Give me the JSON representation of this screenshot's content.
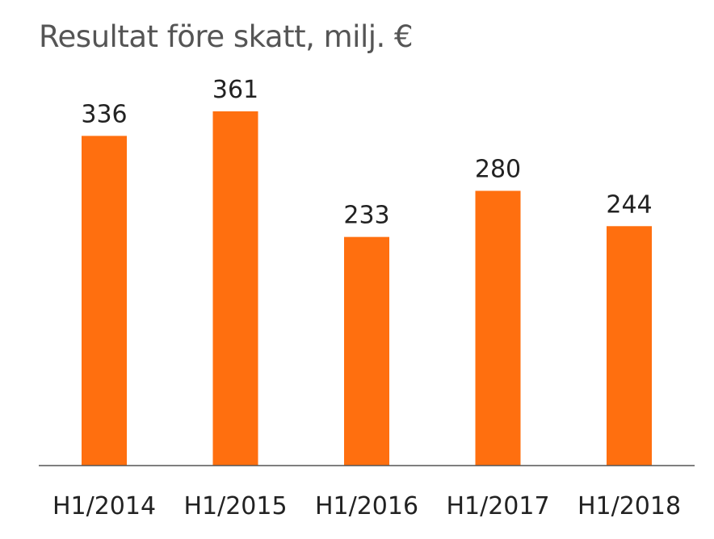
{
  "chart_data": {
    "type": "bar",
    "title": "Resultat före skatt, milj. €",
    "xlabel": "",
    "ylabel": "",
    "categories": [
      "H1/2014",
      "H1/2015",
      "H1/2016",
      "H1/2017",
      "H1/2018"
    ],
    "values": [
      336,
      361,
      233,
      280,
      244
    ],
    "data_labels": [
      "336",
      "361",
      "233",
      "280",
      "244"
    ],
    "ylim": [
      0,
      361
    ],
    "grid": false,
    "legend": "none",
    "bar_color": "#FF6F0F",
    "axis_color": "#555555"
  }
}
